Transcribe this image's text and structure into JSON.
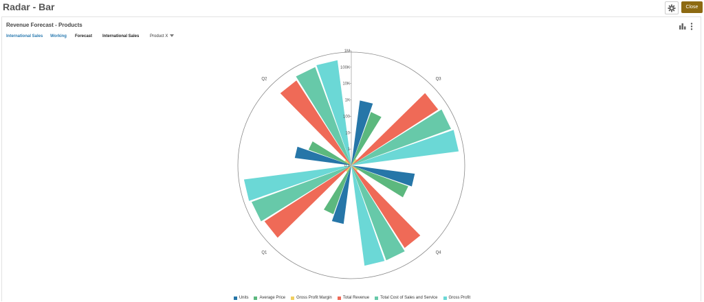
{
  "app": {
    "title": "Radar - Bar",
    "close_label": "Close"
  },
  "panel": {
    "title": "Revenue Forecast - Products",
    "pov": [
      {
        "label": "International Sales",
        "style": "link"
      },
      {
        "label": "Working",
        "style": "link"
      },
      {
        "label": "Forecast",
        "style": "plain"
      },
      {
        "label": "International Sales",
        "style": "plain"
      },
      {
        "label": "Product X",
        "style": "dropdown"
      }
    ]
  },
  "icons": {
    "settings": "gear-icon",
    "chart_type": "bar-chart-icon",
    "more": "vertical-ellipsis-icon"
  },
  "colors": {
    "Units": "#2676a8",
    "Average Price": "#5cb87e",
    "Gross Profit Margin": "#f0cf60",
    "Total Revenue": "#ef6a57",
    "Total Cost of Sales and Service": "#67c9a9",
    "Gross Profit": "#6bd8d6",
    "close_button": "#8d6a12"
  },
  "chart_data": {
    "type": "radar-bar",
    "categories": [
      "Q3",
      "Q4",
      "Q1",
      "Q2"
    ],
    "radial_axis": {
      "scale": "log",
      "ticks": [
        "0.1",
        "1",
        "10",
        "100",
        "1K",
        "10K",
        "100K",
        "1M"
      ]
    },
    "series": [
      {
        "name": "Units",
        "values": [
          1000,
          800,
          400,
          300
        ]
      },
      {
        "name": "Average Price",
        "values": [
          300,
          500,
          150,
          60
        ]
      },
      {
        "name": "Gross Profit Margin",
        "values": [
          0.3,
          0.3,
          0.3,
          0.3
        ]
      },
      {
        "name": "Total Revenue",
        "values": [
          200000,
          100000,
          200000,
          150000
        ]
      },
      {
        "name": "Total Cost of Sales and Service",
        "values": [
          300000,
          150000,
          300000,
          250000
        ]
      },
      {
        "name": "Gross Profit",
        "values": [
          400000,
          150000,
          400000,
          300000
        ]
      }
    ],
    "legend_position": "bottom"
  }
}
